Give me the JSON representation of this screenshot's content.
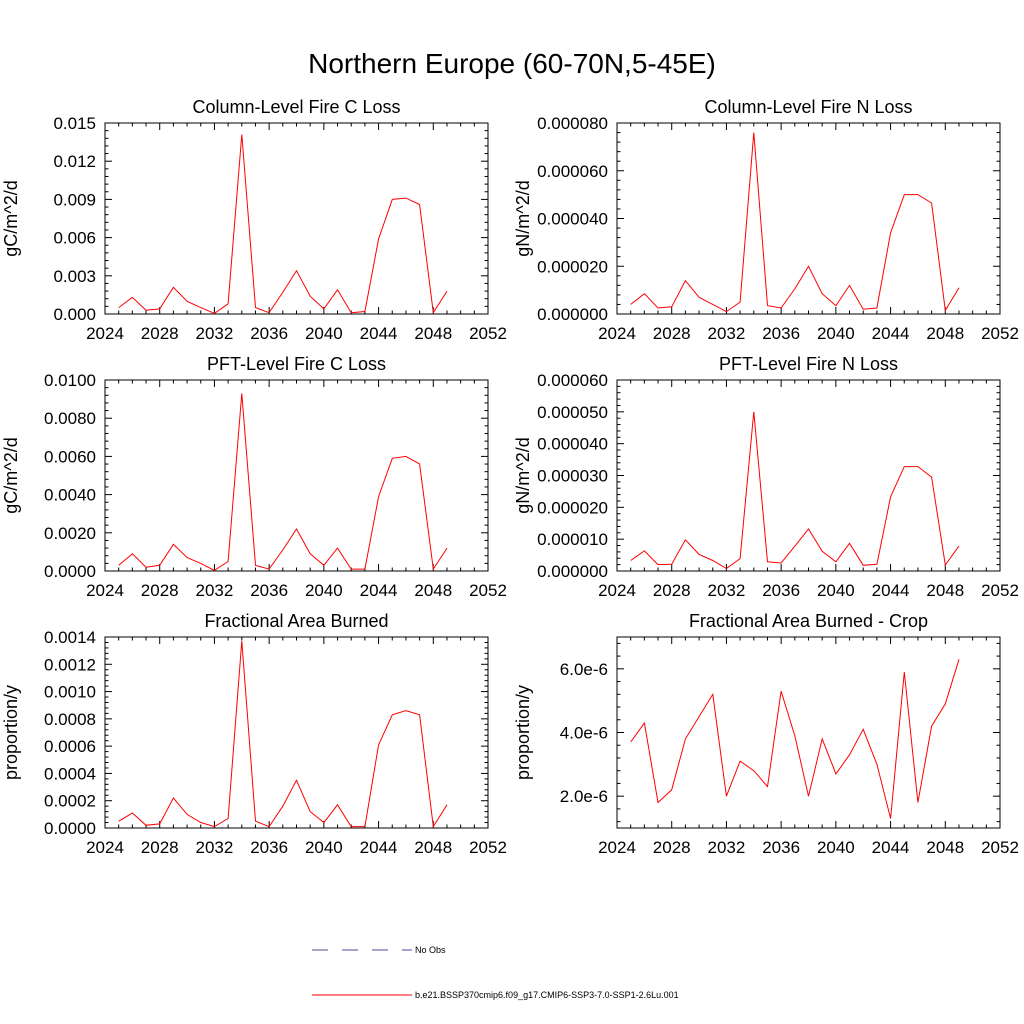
{
  "figure": {
    "title": "Northern Europe (60-70N,5-45E)"
  },
  "legend": {
    "entries": [
      {
        "label": "No Obs",
        "color": "#4a4a9a",
        "style": "dashed"
      },
      {
        "label": "b.e21.BSSP370cmip6.f09_g17.CMIP6-SSP3-7.0-SSP1-2.6Lu.001",
        "color": "#ff0000",
        "style": "solid"
      }
    ]
  },
  "colors": {
    "series": "#ff0000",
    "axis": "#000000"
  },
  "chart_data": [
    {
      "type": "line",
      "title": "Column-Level Fire C Loss",
      "ylabel": "gC/m^2/d",
      "xlabel": "",
      "xlim": [
        2024,
        2052
      ],
      "ylim": [
        0,
        0.015
      ],
      "xticks": [
        2024,
        2028,
        2032,
        2036,
        2040,
        2044,
        2048,
        2052
      ],
      "xtick_labels": [
        "2024",
        "2028",
        "2032",
        "2036",
        "2040",
        "2044",
        "2048",
        "2052"
      ],
      "yticks": [
        0,
        0.003,
        0.006,
        0.009,
        0.012,
        0.015
      ],
      "ytick_labels": [
        "0.000",
        "0.003",
        "0.006",
        "0.009",
        "0.012",
        "0.015"
      ],
      "series": [
        {
          "x": [
            2025,
            2026,
            2027,
            2028,
            2029,
            2030,
            2031,
            2032,
            2033,
            2034,
            2035,
            2036,
            2037,
            2038,
            2039,
            2040,
            2041,
            2042,
            2043,
            2044,
            2045,
            2046,
            2047,
            2048,
            2049
          ],
          "values": [
            0.0005,
            0.0013,
            0.0003,
            0.0004,
            0.0021,
            0.001,
            0.0005,
            5e-05,
            0.0008,
            0.0141,
            0.0005,
            0.0001,
            0.0017,
            0.0034,
            0.0014,
            0.0004,
            0.0019,
            0.0001,
            0.0002,
            0.0059,
            0.009,
            0.0091,
            0.0086,
            0.0001,
            0.0018
          ]
        }
      ]
    },
    {
      "type": "line",
      "title": "Column-Level Fire N Loss",
      "ylabel": "gN/m^2/d",
      "xlabel": "",
      "xlim": [
        2024,
        2052
      ],
      "ylim": [
        0,
        8e-05
      ],
      "xticks": [
        2024,
        2028,
        2032,
        2036,
        2040,
        2044,
        2048,
        2052
      ],
      "xtick_labels": [
        "2024",
        "2028",
        "2032",
        "2036",
        "2040",
        "2044",
        "2048",
        "2052"
      ],
      "yticks": [
        0,
        2e-05,
        4e-05,
        6e-05,
        8e-05
      ],
      "ytick_labels": [
        "0.000000",
        "0.000020",
        "0.000040",
        "0.000060",
        "0.000080"
      ],
      "series": [
        {
          "x": [
            2025,
            2026,
            2027,
            2028,
            2029,
            2030,
            2031,
            2032,
            2033,
            2034,
            2035,
            2036,
            2037,
            2038,
            2039,
            2040,
            2041,
            2042,
            2043,
            2044,
            2045,
            2046,
            2047,
            2048,
            2049
          ],
          "values": [
            4e-06,
            8.5e-06,
            2.5e-06,
            3e-06,
            1.4e-05,
            7e-06,
            4e-06,
            1e-06,
            5e-06,
            7.6e-05,
            3.5e-06,
            2.5e-06,
            1.05e-05,
            2e-05,
            8.5e-06,
            3.5e-06,
            1.2e-05,
            2e-06,
            2.5e-06,
            3.4e-05,
            5e-05,
            5e-05,
            4.65e-05,
            1.5e-06,
            1.1e-05
          ]
        }
      ]
    },
    {
      "type": "line",
      "title": "PFT-Level Fire C Loss",
      "ylabel": "gC/m^2/d",
      "xlabel": "",
      "xlim": [
        2024,
        2052
      ],
      "ylim": [
        0,
        0.01
      ],
      "xticks": [
        2024,
        2028,
        2032,
        2036,
        2040,
        2044,
        2048,
        2052
      ],
      "xtick_labels": [
        "2024",
        "2028",
        "2032",
        "2036",
        "2040",
        "2044",
        "2048",
        "2052"
      ],
      "yticks": [
        0,
        0.002,
        0.004,
        0.006,
        0.008,
        0.01
      ],
      "ytick_labels": [
        "0.0000",
        "0.0020",
        "0.0040",
        "0.0060",
        "0.0080",
        "0.0100"
      ],
      "series": [
        {
          "x": [
            2025,
            2026,
            2027,
            2028,
            2029,
            2030,
            2031,
            2032,
            2033,
            2034,
            2035,
            2036,
            2037,
            2038,
            2039,
            2040,
            2041,
            2042,
            2043,
            2044,
            2045,
            2046,
            2047,
            2048,
            2049
          ],
          "values": [
            0.0003,
            0.0009,
            0.0002,
            0.0003,
            0.0014,
            0.0007,
            0.0004,
            3e-05,
            0.0005,
            0.0093,
            0.0003,
            0.0001,
            0.0011,
            0.0022,
            0.0009,
            0.0003,
            0.0012,
            0.0001,
            0.0001,
            0.0039,
            0.0059,
            0.006,
            0.0056,
            0.0001,
            0.0012
          ]
        }
      ]
    },
    {
      "type": "line",
      "title": "PFT-Level Fire N Loss",
      "ylabel": "gN/m^2/d",
      "xlabel": "",
      "xlim": [
        2024,
        2052
      ],
      "ylim": [
        0,
        6e-05
      ],
      "xticks": [
        2024,
        2028,
        2032,
        2036,
        2040,
        2044,
        2048,
        2052
      ],
      "xtick_labels": [
        "2024",
        "2028",
        "2032",
        "2036",
        "2040",
        "2044",
        "2048",
        "2052"
      ],
      "yticks": [
        0,
        1e-05,
        2e-05,
        3e-05,
        4e-05,
        5e-05,
        6e-05
      ],
      "ytick_labels": [
        "0.000000",
        "0.000010",
        "0.000020",
        "0.000030",
        "0.000040",
        "0.000050",
        "0.000060"
      ],
      "series": [
        {
          "x": [
            2025,
            2026,
            2027,
            2028,
            2029,
            2030,
            2031,
            2032,
            2033,
            2034,
            2035,
            2036,
            2037,
            2038,
            2039,
            2040,
            2041,
            2042,
            2043,
            2044,
            2045,
            2046,
            2047,
            2048,
            2049
          ],
          "values": [
            3.3e-06,
            6.3e-06,
            2e-06,
            2.1e-06,
            9.8e-06,
            5.2e-06,
            3.3e-06,
            8e-07,
            3.9e-06,
            5e-05,
            2.9e-06,
            2.5e-06,
            7.8e-06,
            1.32e-05,
            6.2e-06,
            2.9e-06,
            8.7e-06,
            1.8e-06,
            2.1e-06,
            2.33e-05,
            3.28e-05,
            3.28e-05,
            2.95e-05,
            1.9e-06,
            7.9e-06
          ]
        }
      ]
    },
    {
      "type": "line",
      "title": "Fractional Area Burned",
      "ylabel": "proportion/y",
      "xlabel": "",
      "xlim": [
        2024,
        2052
      ],
      "ylim": [
        0,
        0.0014
      ],
      "xticks": [
        2024,
        2028,
        2032,
        2036,
        2040,
        2044,
        2048,
        2052
      ],
      "xtick_labels": [
        "2024",
        "2028",
        "2032",
        "2036",
        "2040",
        "2044",
        "2048",
        "2052"
      ],
      "yticks": [
        0,
        0.0002,
        0.0004,
        0.0006,
        0.0008,
        0.001,
        0.0012,
        0.0014
      ],
      "ytick_labels": [
        "0.0000",
        "0.0002",
        "0.0004",
        "0.0006",
        "0.0008",
        "0.0010",
        "0.0012",
        "0.0014"
      ],
      "series": [
        {
          "x": [
            2025,
            2026,
            2027,
            2028,
            2029,
            2030,
            2031,
            2032,
            2033,
            2034,
            2035,
            2036,
            2037,
            2038,
            2039,
            2040,
            2041,
            2042,
            2043,
            2044,
            2045,
            2046,
            2047,
            2048,
            2049
          ],
          "values": [
            5e-05,
            0.00011,
            2e-05,
            3e-05,
            0.00022,
            0.0001,
            4e-05,
            1e-05,
            7e-05,
            0.00137,
            5e-05,
            1e-05,
            0.00016,
            0.00035,
            0.00012,
            4e-05,
            0.00017,
            1e-05,
            1e-05,
            0.00061,
            0.00083,
            0.00086,
            0.00083,
            1e-05,
            0.00017
          ]
        }
      ]
    },
    {
      "type": "line",
      "title": "Fractional Area Burned - Crop",
      "ylabel": "proportion/y",
      "xlabel": "",
      "xlim": [
        2024,
        2052
      ],
      "ylim": [
        1e-06,
        7e-06
      ],
      "xticks": [
        2024,
        2028,
        2032,
        2036,
        2040,
        2044,
        2048,
        2052
      ],
      "xtick_labels": [
        "2024",
        "2028",
        "2032",
        "2036",
        "2040",
        "2044",
        "2048",
        "2052"
      ],
      "yticks": [
        2e-06,
        4e-06,
        6e-06
      ],
      "ytick_labels": [
        "2.0e-6",
        "4.0e-6",
        "6.0e-6"
      ],
      "series": [
        {
          "x": [
            2025,
            2026,
            2027,
            2028,
            2029,
            2030,
            2031,
            2032,
            2033,
            2034,
            2035,
            2036,
            2037,
            2038,
            2039,
            2040,
            2041,
            2042,
            2043,
            2044,
            2045,
            2046,
            2047,
            2048,
            2049
          ],
          "values": [
            3.7e-06,
            4.3e-06,
            1.8e-06,
            2.2e-06,
            3.8e-06,
            4.5e-06,
            5.2e-06,
            2e-06,
            3.1e-06,
            2.8e-06,
            2.3e-06,
            5.3e-06,
            3.9e-06,
            2e-06,
            3.8e-06,
            2.7e-06,
            3.3e-06,
            4.1e-06,
            3e-06,
            1.3e-06,
            5.9e-06,
            1.8e-06,
            4.2e-06,
            4.9e-06,
            6.3e-06
          ]
        }
      ]
    }
  ]
}
